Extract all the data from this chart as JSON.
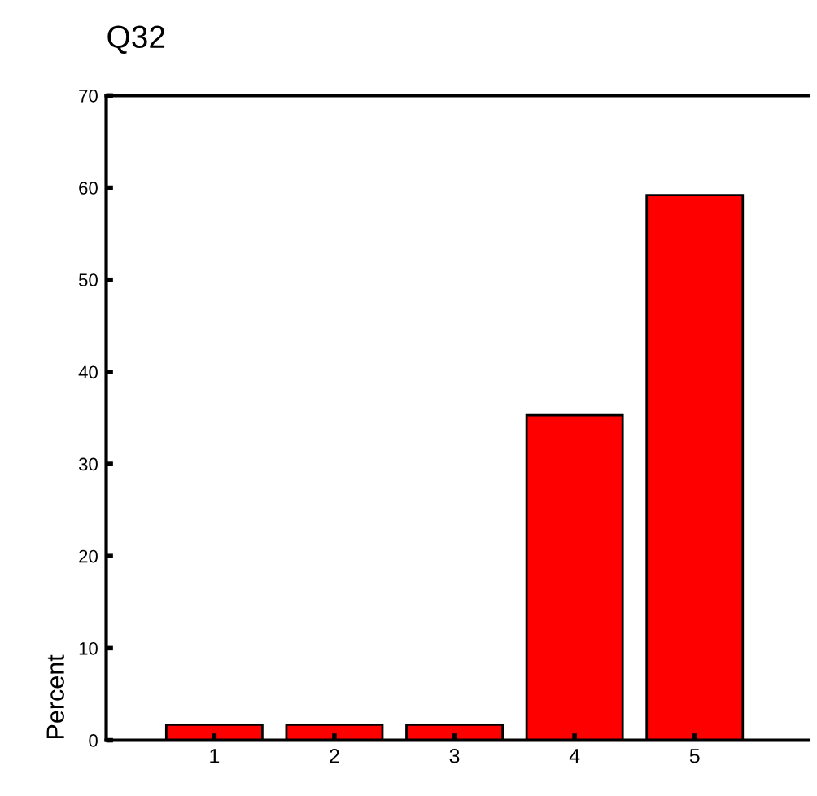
{
  "chart_data": {
    "type": "bar",
    "title": "Q32",
    "ylabel": "Percent",
    "categories": [
      "1",
      "2",
      "3",
      "4",
      "5"
    ],
    "values": [
      1.7,
      1.7,
      1.7,
      35.3,
      59.2
    ],
    "color": "#ff0000",
    "ylim": [
      0,
      70
    ],
    "yticks": [
      0,
      10,
      20,
      30,
      40,
      50,
      60,
      70
    ],
    "grid": false
  }
}
